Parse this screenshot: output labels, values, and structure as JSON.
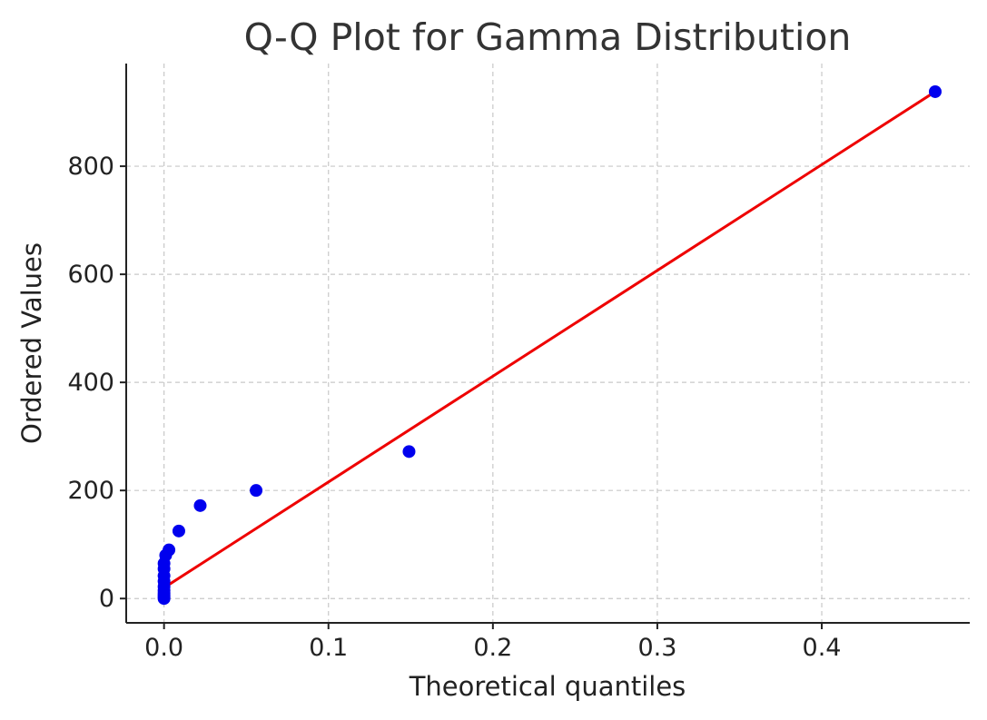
{
  "chart_data": {
    "type": "scatter",
    "title": "Q-Q Plot for Gamma Distribution",
    "xlabel": "Theoretical quantiles",
    "ylabel": "Ordered Values",
    "xlim": [
      -0.023,
      0.49
    ],
    "ylim": [
      -45,
      990
    ],
    "xticks": [
      0.0,
      0.1,
      0.2,
      0.3,
      0.4
    ],
    "xtick_labels": [
      "0.0",
      "0.1",
      "0.2",
      "0.3",
      "0.4"
    ],
    "yticks": [
      0,
      200,
      400,
      600,
      800
    ],
    "ytick_labels": [
      "0",
      "200",
      "400",
      "600",
      "800"
    ],
    "grid": true,
    "points_color": "#0000ee",
    "line_color": "#ee0000",
    "points": [
      {
        "x": 0.0,
        "y": 0
      },
      {
        "x": 0.0,
        "y": 3
      },
      {
        "x": 0.0,
        "y": 6
      },
      {
        "x": 0.0,
        "y": 10
      },
      {
        "x": 0.0,
        "y": 15
      },
      {
        "x": 0.0,
        "y": 22
      },
      {
        "x": 0.0,
        "y": 32
      },
      {
        "x": 0.0,
        "y": 42
      },
      {
        "x": 0.0,
        "y": 55
      },
      {
        "x": 0.0,
        "y": 65
      },
      {
        "x": 0.001,
        "y": 80
      },
      {
        "x": 0.003,
        "y": 90
      },
      {
        "x": 0.009,
        "y": 125
      },
      {
        "x": 0.022,
        "y": 172
      },
      {
        "x": 0.056,
        "y": 200
      },
      {
        "x": 0.149,
        "y": 272
      },
      {
        "x": 0.469,
        "y": 938
      }
    ],
    "fit_line": {
      "x": [
        0.0,
        0.469
      ],
      "y": [
        20,
        938
      ]
    }
  }
}
